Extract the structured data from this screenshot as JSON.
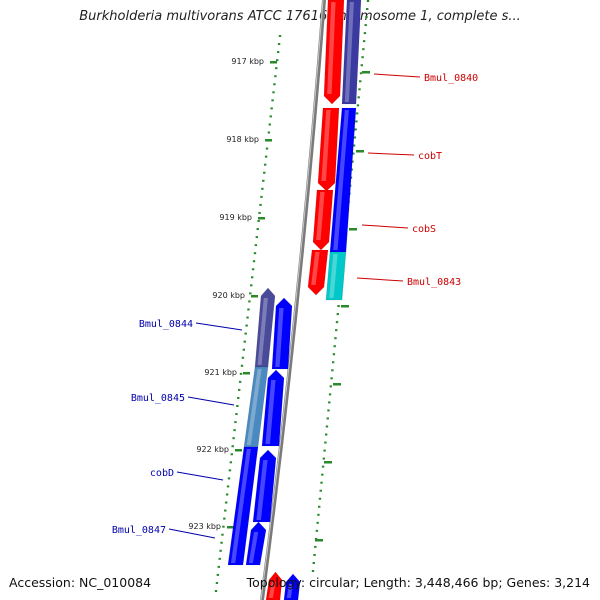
{
  "title": "Burkholderia multivorans ATCC 17616 chromosome 1, complete s...",
  "footer": {
    "accession": "Accession: NC_010084",
    "topology": "Topology: circular; Length: 3,448,466 bp; Genes: 3,214"
  },
  "ticks": [
    {
      "label": "917 kbp",
      "position_kbp": 917
    },
    {
      "label": "918 kbp",
      "position_kbp": 918
    },
    {
      "label": "919 kbp",
      "position_kbp": 919
    },
    {
      "label": "920 kbp",
      "position_kbp": 920
    },
    {
      "label": "921 kbp",
      "position_kbp": 921
    },
    {
      "label": "922 kbp",
      "position_kbp": 922
    },
    {
      "label": "923 kbp",
      "position_kbp": 923
    }
  ],
  "genes": [
    {
      "label": "Bmul_0840",
      "strand": "forward",
      "color": "#3a3aa0"
    },
    {
      "label": "cobT",
      "strand": "forward",
      "color": "#0000ff"
    },
    {
      "label": "cobS",
      "strand": "forward",
      "color": "#0000ff"
    },
    {
      "label": "Bmul_0843",
      "strand": "forward",
      "color": "#00c8c8"
    },
    {
      "label": "Bmul_0844",
      "strand": "reverse",
      "color": "#4a4a9a"
    },
    {
      "label": "Bmul_0845",
      "strand": "reverse",
      "color": "#4a8ac0"
    },
    {
      "label": "cobD",
      "strand": "reverse",
      "color": "#0000ff"
    },
    {
      "label": "Bmul_0847",
      "strand": "reverse",
      "color": "#0000ff"
    }
  ],
  "colors": {
    "forward_label": "#cc0000",
    "reverse_label": "#0000aa",
    "ticks": "#2a8a2a",
    "orf": "#ff0000",
    "orf_blue": "#0000ff",
    "backbone": "#888888"
  }
}
